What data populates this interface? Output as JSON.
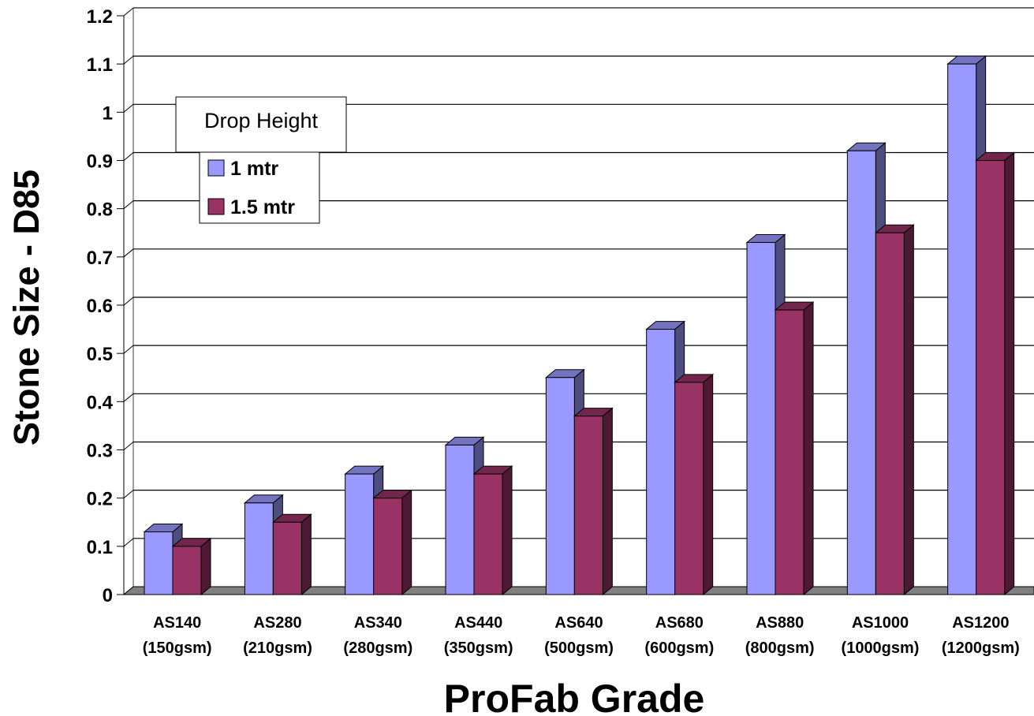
{
  "chart_data": {
    "type": "bar",
    "style": "3d-clustered-column",
    "title": "",
    "xlabel": "ProFab Grade",
    "ylabel": "Stone Size - D85",
    "ylim": [
      0,
      1.2
    ],
    "yticks": [
      "0",
      "0.1",
      "0.2",
      "0.3",
      "0.4",
      "0.5",
      "0.6",
      "0.7",
      "0.8",
      "0.9",
      "1",
      "1.1",
      "1.2"
    ],
    "grid": true,
    "legend_title": "Drop Height",
    "legend_position": "top-left",
    "categories": [
      {
        "line1": "AS140",
        "line2": "(150gsm)"
      },
      {
        "line1": "AS280",
        "line2": "(210gsm)"
      },
      {
        "line1": "AS340",
        "line2": "(280gsm)"
      },
      {
        "line1": "AS440",
        "line2": "(350gsm)"
      },
      {
        "line1": "AS640",
        "line2": "(500gsm)"
      },
      {
        "line1": "AS680",
        "line2": "(600gsm)"
      },
      {
        "line1": "AS880",
        "line2": "(800gsm)"
      },
      {
        "line1": "AS1000",
        "line2": "(1000gsm)"
      },
      {
        "line1": "AS1200",
        "line2": "(1200gsm)"
      }
    ],
    "series": [
      {
        "name": "1 mtr",
        "color": "#9999FF",
        "side_color": "#4D4D80",
        "top_color": "#7373BF",
        "values": [
          0.13,
          0.19,
          0.25,
          0.31,
          0.45,
          0.55,
          0.73,
          0.92,
          1.1
        ]
      },
      {
        "name": "1.5 mtr",
        "color": "#993366",
        "side_color": "#4D1933",
        "top_color": "#73264C",
        "values": [
          0.1,
          0.15,
          0.2,
          0.25,
          0.37,
          0.44,
          0.59,
          0.75,
          0.9
        ]
      }
    ]
  }
}
